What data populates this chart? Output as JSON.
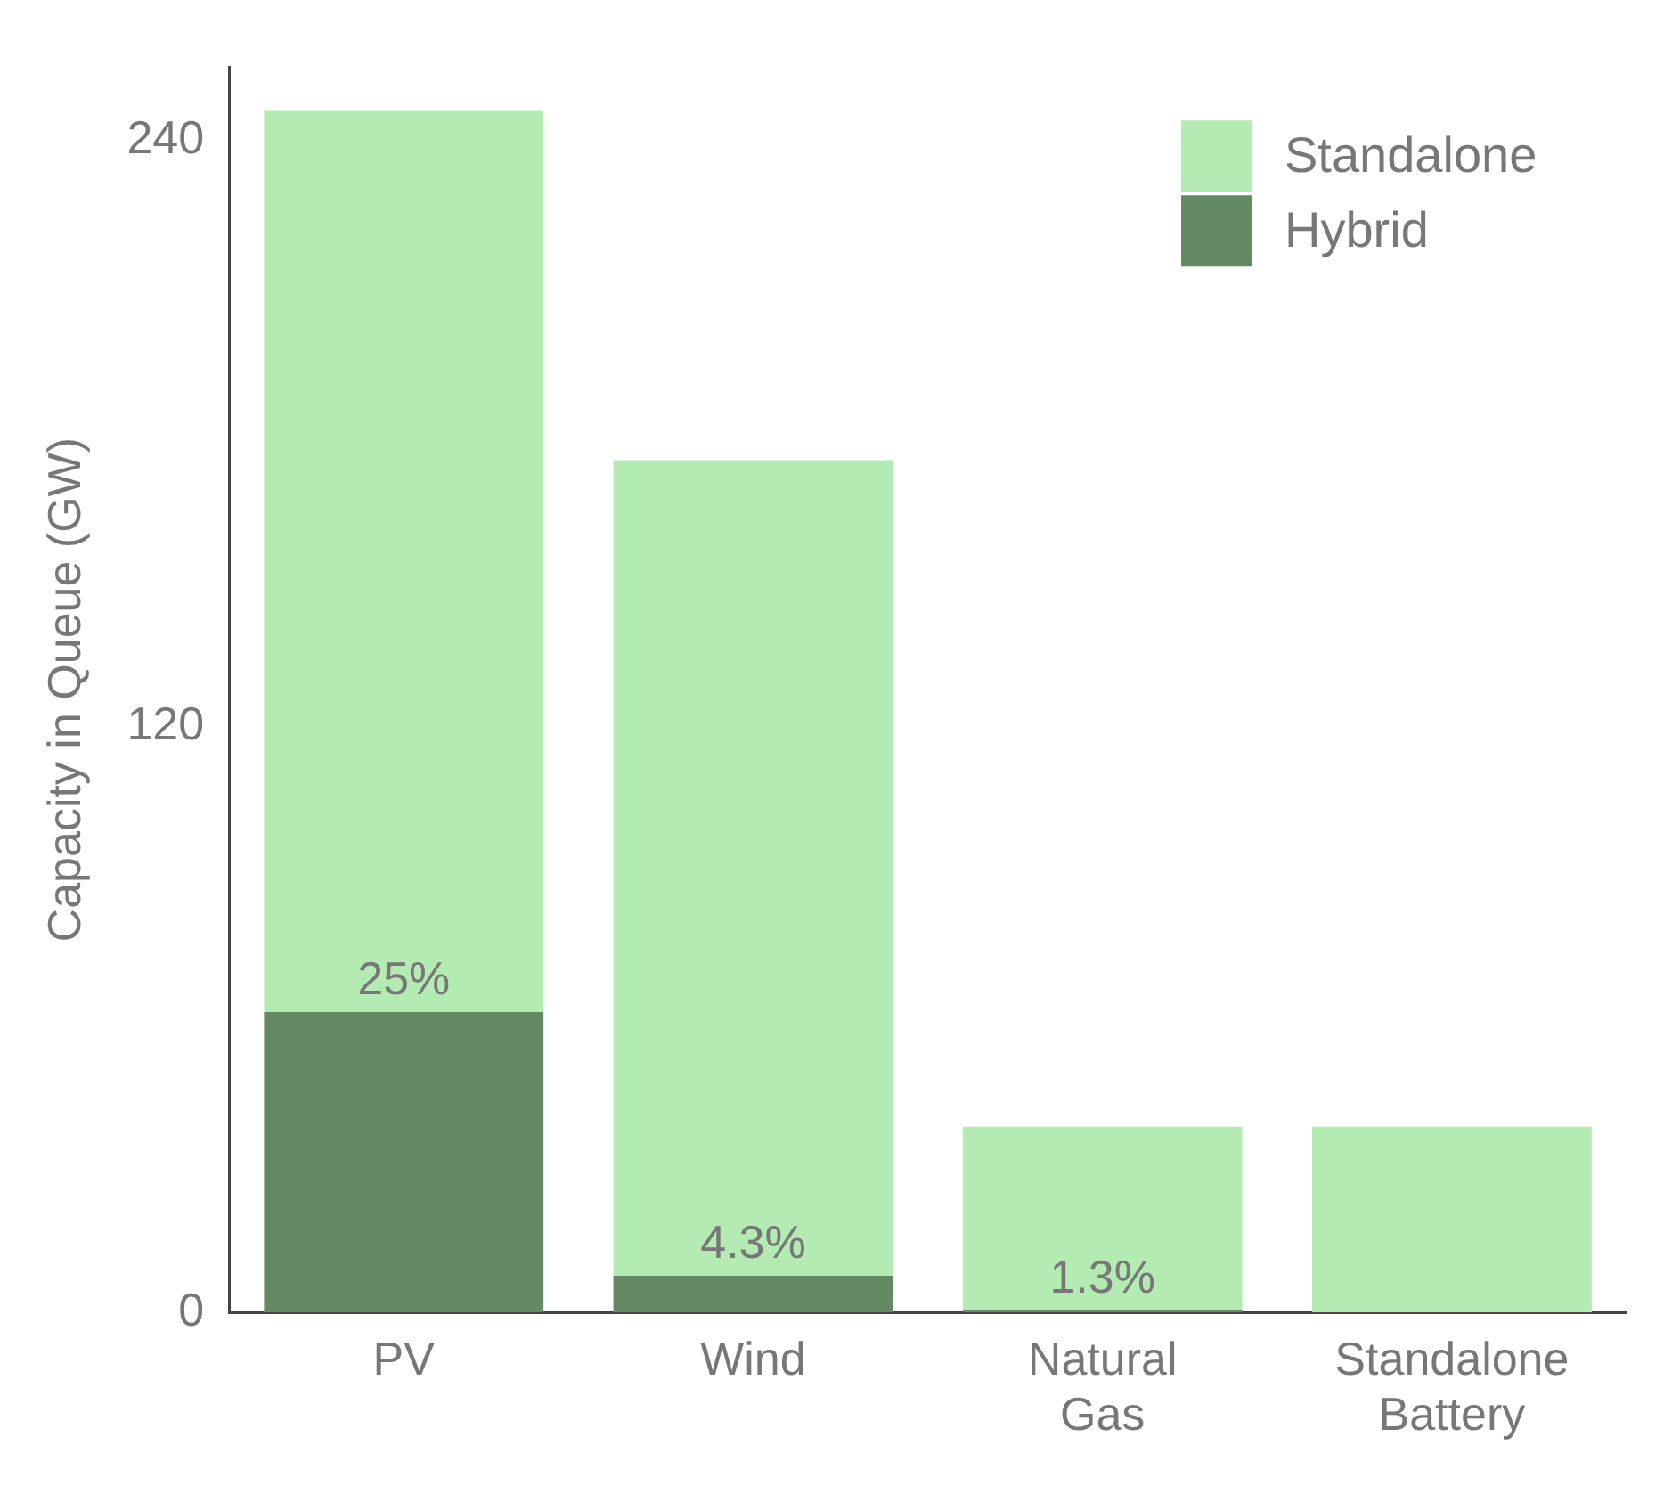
{
  "chart_data": {
    "type": "bar",
    "ylabel": "Capacity in Queue (GW)",
    "categories": [
      "PV",
      "Wind",
      "Natural Gas",
      "Standalone Battery"
    ],
    "stacked": true,
    "series": [
      {
        "name": "Hybrid",
        "color": "#648a64",
        "values": [
          61.5,
          7.5,
          0.5,
          0
        ]
      },
      {
        "name": "Standalone",
        "color": "#b3ebb3",
        "values": [
          184.5,
          167,
          37.5,
          38
        ]
      }
    ],
    "annotations": [
      {
        "text": "25%",
        "x": "PV",
        "y": 61.5
      },
      {
        "text": "4.3%",
        "x": "Wind",
        "y": 7.5
      },
      {
        "text": "1.3%",
        "x": "Natural Gas",
        "y": 0.5
      }
    ],
    "ylim": [
      0,
      255
    ],
    "yticks": [
      0,
      120,
      240
    ],
    "grid": false,
    "legend": "top right"
  }
}
